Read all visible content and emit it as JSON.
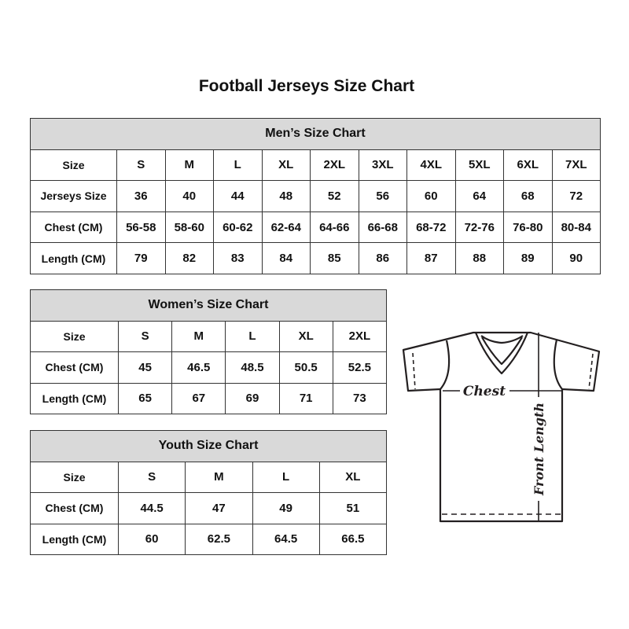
{
  "title": "Football Jerseys Size Chart",
  "men": {
    "heading": "Men’s Size Chart",
    "rows": [
      {
        "label": "Size",
        "values": [
          "S",
          "M",
          "L",
          "XL",
          "2XL",
          "3XL",
          "4XL",
          "5XL",
          "6XL",
          "7XL"
        ]
      },
      {
        "label": "Jerseys Size",
        "values": [
          "36",
          "40",
          "44",
          "48",
          "52",
          "56",
          "60",
          "64",
          "68",
          "72"
        ]
      },
      {
        "label": "Chest (CM)",
        "values": [
          "56-58",
          "58-60",
          "60-62",
          "62-64",
          "64-66",
          "66-68",
          "68-72",
          "72-76",
          "76-80",
          "80-84"
        ]
      },
      {
        "label": "Length (CM)",
        "values": [
          "79",
          "82",
          "83",
          "84",
          "85",
          "86",
          "87",
          "88",
          "89",
          "90"
        ]
      }
    ]
  },
  "women": {
    "heading": "Women’s Size Chart",
    "rows": [
      {
        "label": "Size",
        "values": [
          "S",
          "M",
          "L",
          "XL",
          "2XL"
        ]
      },
      {
        "label": "Chest (CM)",
        "values": [
          "45",
          "46.5",
          "48.5",
          "50.5",
          "52.5"
        ]
      },
      {
        "label": "Length (CM)",
        "values": [
          "65",
          "67",
          "69",
          "71",
          "73"
        ]
      }
    ]
  },
  "youth": {
    "heading": "Youth Size Chart",
    "rows": [
      {
        "label": "Size",
        "values": [
          "S",
          "M",
          "L",
          "XL"
        ]
      },
      {
        "label": "Chest (CM)",
        "values": [
          "44.5",
          "47",
          "49",
          "51"
        ]
      },
      {
        "label": "Length (CM)",
        "values": [
          "60",
          "62.5",
          "64.5",
          "66.5"
        ]
      }
    ]
  },
  "diagram": {
    "chest_label": "Chest",
    "length_label": "Front Length"
  },
  "colors": {
    "header_bg": "#d9d9d9",
    "border": "#333333"
  }
}
